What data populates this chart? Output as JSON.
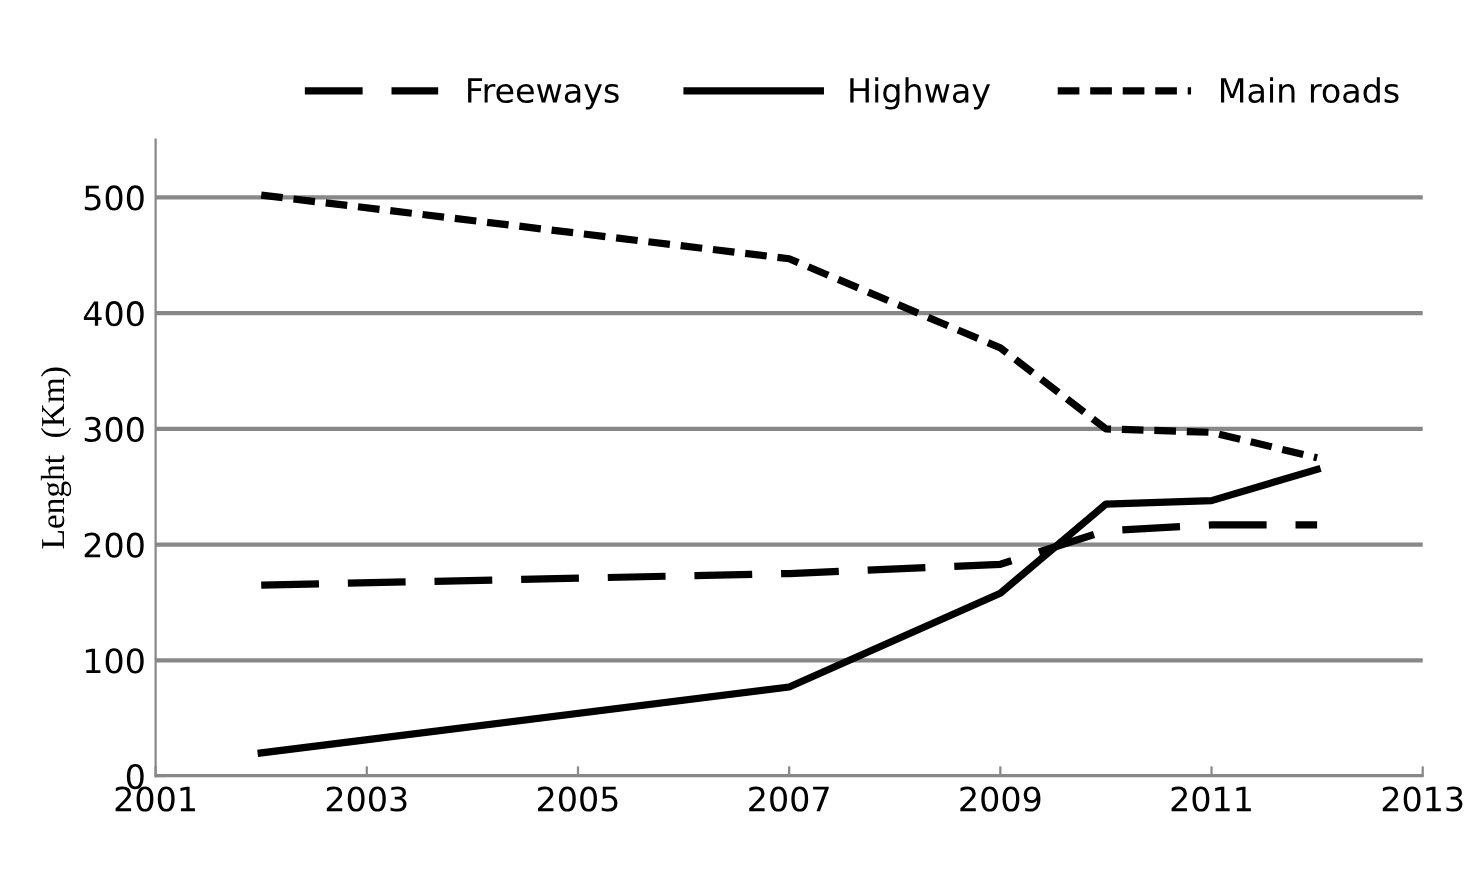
{
  "chart_data": {
    "type": "line",
    "ylabel": "Lenght  (Km)",
    "x": [
      2002,
      2007,
      2009,
      2010,
      2011,
      2012
    ],
    "series": [
      {
        "name": "Freeways",
        "color": "#000000",
        "line_style": "dashed",
        "values": [
          165,
          175,
          183,
          212,
          217,
          217
        ]
      },
      {
        "name": "Highway",
        "color": "#000000",
        "line_style": "solid",
        "values": [
          20,
          77,
          158,
          235,
          238,
          265
        ]
      },
      {
        "name": "Main roads",
        "color": "#000000",
        "line_style": "dotted",
        "values": [
          502,
          447,
          370,
          300,
          297,
          275
        ]
      }
    ],
    "xlim": [
      2001,
      2013
    ],
    "xticks": [
      2001,
      2003,
      2005,
      2007,
      2009,
      2011,
      2013
    ],
    "ylim": [
      0,
      550
    ],
    "yticks": [
      0,
      100,
      200,
      300,
      400,
      500
    ],
    "grid": "y",
    "legend": "top",
    "marker": "none"
  }
}
